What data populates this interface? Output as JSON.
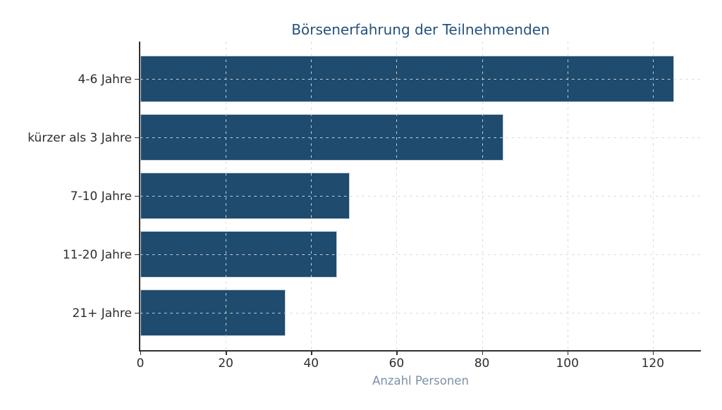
{
  "chart_data": {
    "type": "bar",
    "orientation": "horizontal",
    "title": "Börsenerfahrung der Teilnehmenden",
    "xlabel": "Anzahl Personen",
    "ylabel": "",
    "categories": [
      "4-6 Jahre",
      "kürzer als 3 Jahre",
      "7-10 Jahre",
      "11-20 Jahre",
      "21+ Jahre"
    ],
    "values": [
      125,
      85,
      49,
      46,
      34
    ],
    "xticks": [
      0,
      20,
      40,
      60,
      80,
      100,
      120
    ],
    "xlim": [
      0,
      131.25
    ],
    "grid": true,
    "grid_style": "dashed",
    "legend": "none",
    "colors": {
      "bar_fill": "#1e4b6e",
      "bar_edge": "#c7d1da",
      "title": "#24527e",
      "xlabel": "#7d90a8",
      "tick_labels": "#2d2d2d",
      "grid": "#d6d9dc",
      "spines": "#303030",
      "background": "#ffffff"
    }
  }
}
